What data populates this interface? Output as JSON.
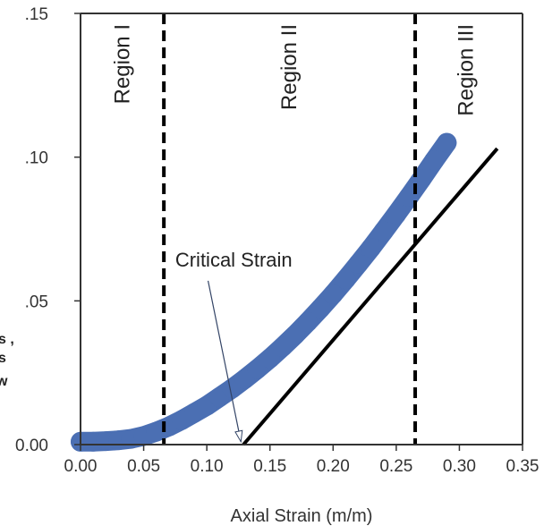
{
  "chart_data": {
    "type": "scatter",
    "title": "",
    "xlabel": "Axial Strain (m/m)",
    "ylabel_fragments": [
      "s ,",
      "s",
      "w"
    ],
    "xlim": [
      0.0,
      0.35
    ],
    "ylim": [
      0.0,
      0.15
    ],
    "x_ticks": [
      "0.00",
      "0.05",
      "0.10",
      "0.15",
      "0.20",
      "0.25",
      "0.30",
      "0.35"
    ],
    "y_ticks": [
      {
        "value": 0.0,
        "label": "0.00"
      },
      {
        "value": 0.05,
        "label": ".05"
      },
      {
        "value": 0.1,
        "label": ".10"
      },
      {
        "value": 0.15,
        "label": ".15"
      }
    ],
    "colors": {
      "data": "#4b6fb3",
      "fit": "#000000",
      "region_lines": "#000000"
    },
    "series": [
      {
        "x": [
          0.0,
          0.01,
          0.02,
          0.03,
          0.04,
          0.05,
          0.06,
          0.07,
          0.08,
          0.09,
          0.1,
          0.11,
          0.12,
          0.13,
          0.14,
          0.15,
          0.16,
          0.17,
          0.18,
          0.19,
          0.2,
          0.21,
          0.22,
          0.23,
          0.24,
          0.25,
          0.26,
          0.27,
          0.28,
          0.29,
          0.3,
          0.31,
          0.32,
          0.33
        ],
        "y": [
          0.001,
          0.001,
          0.0012,
          0.0015,
          0.002,
          0.003,
          0.0045,
          0.0063,
          0.0085,
          0.011,
          0.0135,
          0.0165,
          0.0195,
          0.0228,
          0.0263,
          0.03,
          0.034,
          0.0382,
          0.0427,
          0.0474,
          0.0523,
          0.0575,
          0.0629,
          0.0684,
          0.0742,
          0.0801,
          0.0862,
          0.0924,
          0.0988,
          0.105,
          0.0825,
          0.0889,
          0.0955,
          0.105
        ]
      }
    ],
    "fit_line": {
      "x": [
        0.129,
        0.33
      ],
      "y": [
        0.0,
        0.103
      ]
    },
    "region_boundaries": [
      0.066,
      0.265
    ],
    "regions": [
      {
        "label": "Region I",
        "x": 0.033
      },
      {
        "label": "Region II",
        "x": 0.165
      },
      {
        "label": "Region III",
        "x": 0.305
      }
    ],
    "annotation": {
      "text": "Critical Strain",
      "text_x": 0.075,
      "text_y": 0.062,
      "arrow_from": [
        0.101,
        0.057
      ],
      "arrow_to": [
        0.127,
        0.001
      ]
    },
    "grid": false,
    "legend": "none"
  }
}
